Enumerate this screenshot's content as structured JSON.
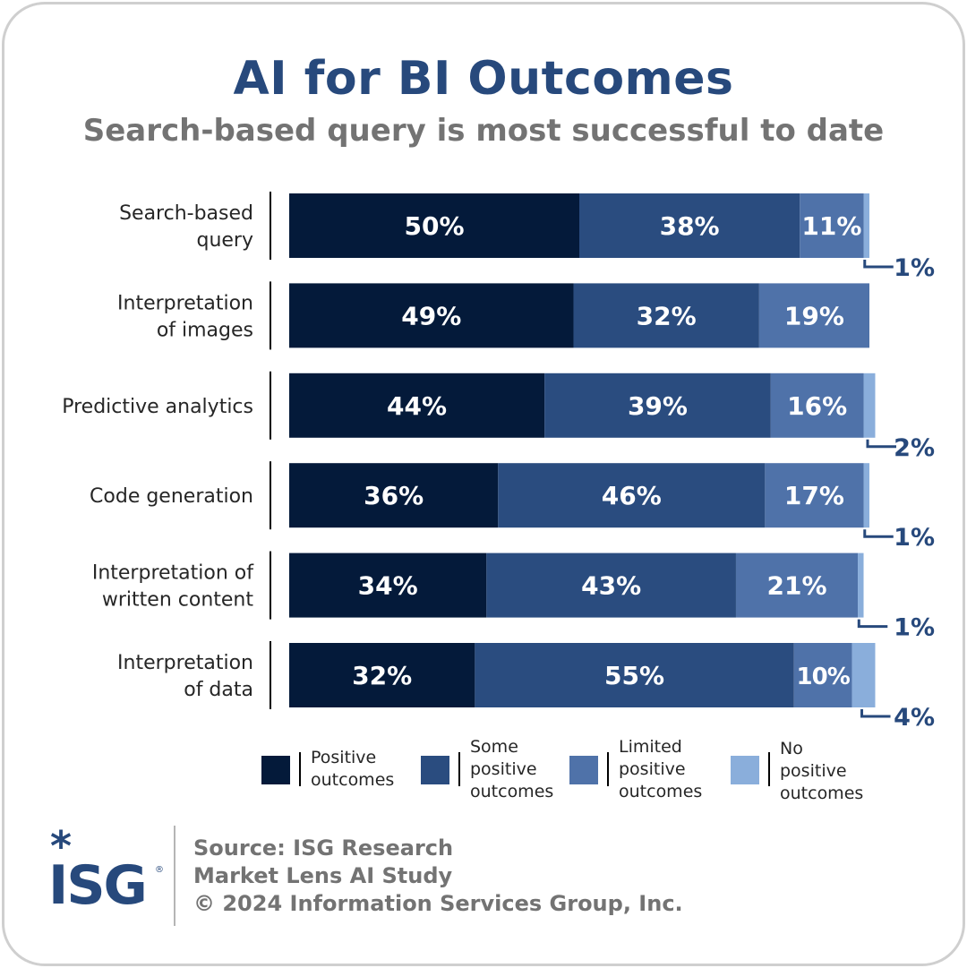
{
  "title": "AI for BI Outcomes",
  "subtitle": "Search-based query is most successful to date",
  "colors": {
    "positive": "#041a3a",
    "some_positive": "#2a4c7f",
    "limited_positive": "#4f72a9",
    "no_positive": "#8aaedb",
    "title": "#27497c",
    "subtitle": "#737373"
  },
  "chart_data": {
    "type": "bar",
    "orientation": "horizontal",
    "stacked": true,
    "xlim": [
      0,
      100
    ],
    "grid": false,
    "legend_placement": "bottom",
    "categories": [
      [
        "Search-based",
        "query"
      ],
      [
        "Interpretation",
        "of images"
      ],
      [
        "Predictive analytics"
      ],
      [
        "Code generation"
      ],
      [
        "Interpretation of",
        "written content"
      ],
      [
        "Interpretation",
        "of data"
      ]
    ],
    "series": [
      {
        "key": "positive",
        "values": [
          50,
          49,
          44,
          36,
          34,
          32
        ],
        "labels": [
          "50%",
          "49%",
          "44%",
          "36%",
          "34%",
          "32%"
        ]
      },
      {
        "key": "some_positive",
        "values": [
          38,
          32,
          39,
          46,
          43,
          55
        ],
        "labels": [
          "38%",
          "32%",
          "39%",
          "46%",
          "43%",
          "55%"
        ]
      },
      {
        "key": "limited_positive",
        "values": [
          11,
          19,
          16,
          17,
          21,
          10
        ],
        "labels": [
          "11%",
          "19%",
          "16%",
          "17%",
          "21%",
          "10%"
        ]
      },
      {
        "key": "no_positive",
        "values": [
          1,
          0,
          2,
          1,
          1,
          4
        ],
        "labels": [
          "1%",
          "",
          "2%",
          "1%",
          "1%",
          "4%"
        ]
      }
    ]
  },
  "legend": [
    {
      "key": "positive",
      "lines": [
        "Positive",
        "outcomes"
      ]
    },
    {
      "key": "some_positive",
      "lines": [
        "Some",
        "positive",
        "outcomes"
      ]
    },
    {
      "key": "limited_positive",
      "lines": [
        "Limited",
        "positive",
        "outcomes"
      ]
    },
    {
      "key": "no_positive",
      "lines": [
        "No",
        "positive",
        "outcomes"
      ]
    }
  ],
  "logo": {
    "text": "ISG",
    "star": "*",
    "reg": "®"
  },
  "source": {
    "line1": "Source: ISG Research",
    "line2": "Market Lens AI Study",
    "line3": "© 2024 Information Services Group, Inc."
  }
}
